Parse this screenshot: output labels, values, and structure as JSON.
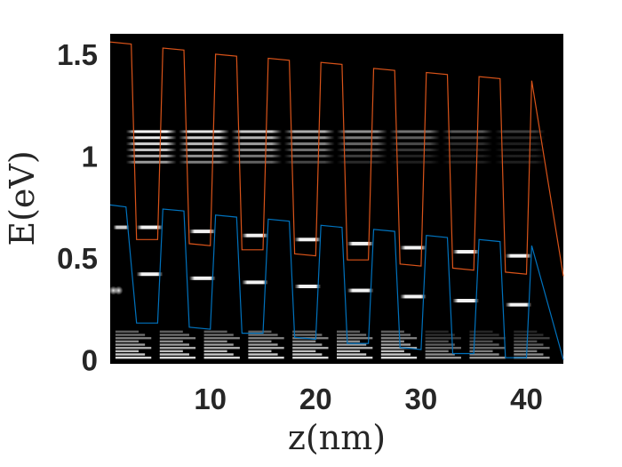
{
  "chart_data": {
    "type": "line",
    "title": "",
    "xlabel": "z(nm)",
    "ylabel": "E(eV)",
    "xlim": [
      0.5,
      43.5
    ],
    "ylim": [
      -0.02,
      1.6
    ],
    "xticks": [
      10,
      20,
      30,
      40
    ],
    "yticks": [
      0,
      0.5,
      1,
      1.5
    ],
    "ytick_labels": [
      "0",
      "0.5",
      "1",
      "1.5"
    ],
    "background": "#000000",
    "grid": false,
    "colors": {
      "conduction_band": "#d95319",
      "valence_band": "#0072bd",
      "states": "#ffffff"
    },
    "series": [
      {
        "x": [
          0.5,
          2.5,
          3.0,
          5.0,
          5.5,
          7.5,
          8.0,
          10.0,
          10.5,
          12.5,
          13.0,
          15.0,
          15.5,
          17.5,
          18.0,
          20.0,
          20.5,
          22.5,
          23.0,
          25.0,
          25.5,
          27.5,
          28.0,
          30.0,
          30.5,
          32.5,
          33.0,
          35.0,
          35.5,
          37.5,
          38.0,
          40.0,
          40.5,
          43.5
        ],
        "y": [
          1.56,
          1.55,
          0.59,
          0.59,
          1.53,
          1.52,
          0.57,
          0.56,
          1.5,
          1.49,
          0.54,
          0.54,
          1.48,
          1.47,
          0.52,
          0.51,
          1.46,
          1.45,
          0.49,
          0.49,
          1.43,
          1.42,
          0.47,
          0.46,
          1.41,
          1.4,
          0.45,
          0.44,
          1.39,
          1.38,
          0.43,
          0.42,
          1.37,
          0.41
        ]
      },
      {
        "x": [
          0.5,
          2.0,
          3.0,
          5.0,
          5.5,
          7.5,
          8.0,
          10.0,
          10.5,
          12.5,
          13.0,
          15.0,
          15.5,
          17.5,
          18.0,
          20.0,
          20.5,
          22.5,
          23.0,
          25.0,
          25.5,
          27.5,
          28.0,
          30.0,
          30.5,
          32.5,
          33.0,
          35.0,
          35.5,
          37.5,
          38.0,
          40.0,
          40.5,
          43.5
        ],
        "y": [
          0.76,
          0.75,
          0.18,
          0.18,
          0.74,
          0.73,
          0.16,
          0.15,
          0.71,
          0.7,
          0.13,
          0.13,
          0.69,
          0.68,
          0.11,
          0.1,
          0.66,
          0.65,
          0.08,
          0.08,
          0.64,
          0.63,
          0.06,
          0.05,
          0.61,
          0.6,
          0.03,
          0.03,
          0.59,
          0.58,
          0.01,
          0.01,
          0.56,
          0.0
        ]
      }
    ]
  }
}
